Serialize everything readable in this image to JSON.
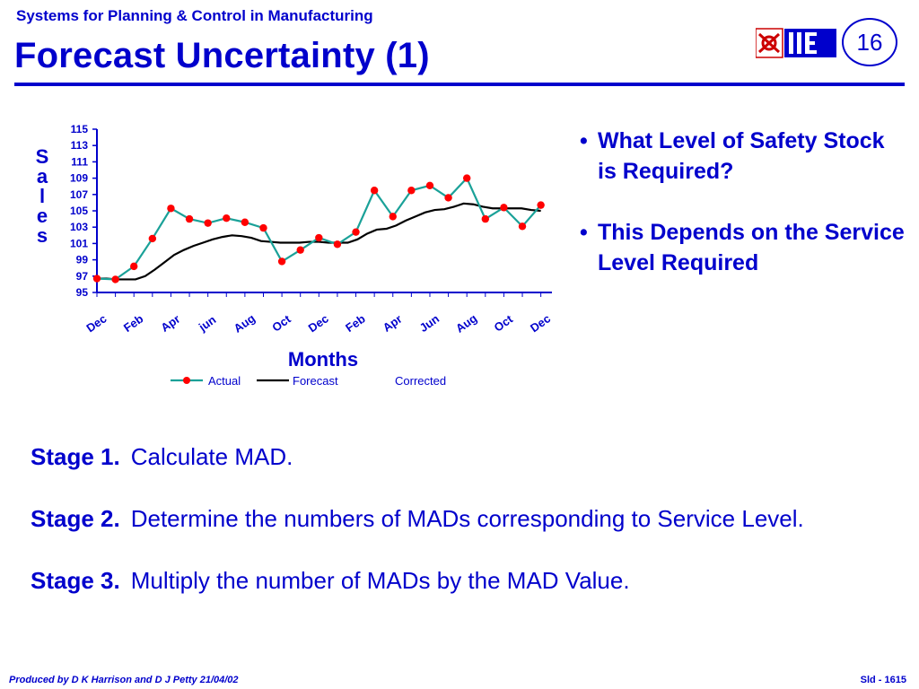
{
  "header": {
    "subtitle": "Systems for Planning & Control in Manufacturing",
    "title": "Forecast Uncertainty (1)",
    "slide_number": "16",
    "logo_text": "IIE"
  },
  "colors": {
    "accent": "#0000cc",
    "actual_line": "#1aa198",
    "actual_marker": "#ff0000",
    "forecast_line": "#000000"
  },
  "chart_data": {
    "type": "line",
    "ylabel": "Sales",
    "ylabel_letters": [
      "S",
      "a",
      "l",
      "e",
      "s"
    ],
    "xlabel": "Months",
    "ylim": [
      95,
      115
    ],
    "yticks": [
      "115",
      "113",
      "111",
      "109",
      "107",
      "105",
      "103",
      "101",
      "99",
      "97",
      "95"
    ],
    "xtick_labels": [
      "Dec",
      "Feb",
      "Apr",
      "jun",
      "Aug",
      "Oct",
      "Dec",
      "Feb",
      "Apr",
      "Jun",
      "Aug",
      "Oct",
      "Dec"
    ],
    "legend": [
      "Actual",
      "Forecast",
      "Corrected"
    ],
    "legend_placement": "bottom",
    "grid": false,
    "series": [
      {
        "name": "Actual",
        "values": [
          96.7,
          96.6,
          98.2,
          101.6,
          105.3,
          104.0,
          103.5,
          104.1,
          103.6,
          102.9,
          98.8,
          100.2,
          101.7,
          100.9,
          102.4,
          107.5,
          104.3,
          107.5,
          108.1,
          106.6,
          109.0,
          104.0,
          105.4,
          103.1,
          105.7
        ]
      },
      {
        "name": "Forecast",
        "values": [
          96.7,
          96.7,
          96.6,
          96.6,
          96.6,
          97.0,
          97.8,
          98.7,
          99.6,
          100.2,
          100.7,
          101.1,
          101.5,
          101.8,
          102.0,
          101.9,
          101.7,
          101.3,
          101.2,
          101.1,
          101.1,
          101.1,
          101.2,
          101.2,
          101.1,
          101.1,
          101.1,
          101.5,
          102.2,
          102.7,
          102.8,
          103.2,
          103.8,
          104.3,
          104.8,
          105.1,
          105.2,
          105.5,
          105.9,
          105.8,
          105.5,
          105.3,
          105.3,
          105.3,
          105.3,
          105.1,
          105.0
        ]
      }
    ]
  },
  "bullets": [
    "What Level of Safety Stock is Required?",
    "This Depends on the Service Level Required"
  ],
  "stages": [
    {
      "label": "Stage 1.",
      "text": "Calculate MAD."
    },
    {
      "label": "Stage 2.",
      "text": "Determine the numbers of MADs corresponding to Service Level."
    },
    {
      "label": "Stage 3.",
      "text": "Multiply the number of MADs by the MAD Value."
    }
  ],
  "footer": {
    "left": "Produced by D K Harrison and D J Petty 21/04/02",
    "right": "Sld - 1615"
  }
}
